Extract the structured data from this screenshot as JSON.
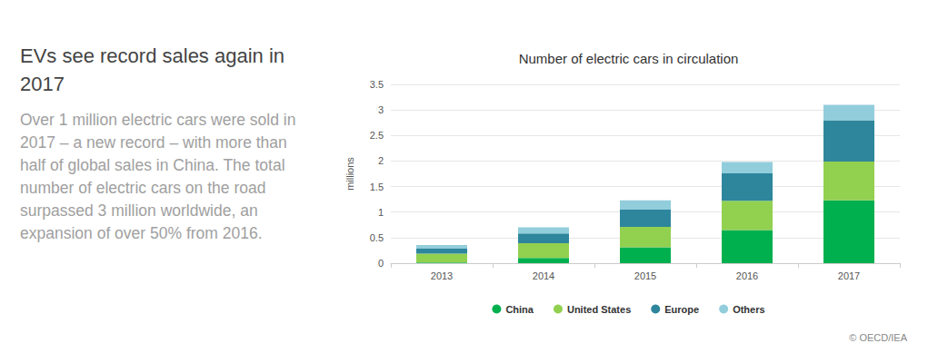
{
  "chart_data": {
    "type": "bar",
    "title": "Number of electric cars in circulation",
    "y_label": "millions",
    "categories": [
      "2013",
      "2014",
      "2015",
      "2016",
      "2017"
    ],
    "series": [
      {
        "name": "China",
        "color": "#00b04f",
        "values": [
          0.015,
          0.1,
          0.31,
          0.65,
          1.23
        ]
      },
      {
        "name": "United States",
        "color": "#92d050",
        "values": [
          0.17,
          0.29,
          0.4,
          0.57,
          0.76
        ]
      },
      {
        "name": "Europe",
        "color": "#2e869c",
        "values": [
          0.1,
          0.19,
          0.34,
          0.54,
          0.81
        ]
      },
      {
        "name": "Others",
        "color": "#92cddc",
        "values": [
          0.07,
          0.12,
          0.18,
          0.22,
          0.3
        ]
      }
    ],
    "ylim": [
      0,
      3.5
    ],
    "yticks": [
      0,
      0.5,
      1,
      1.5,
      2,
      2.5,
      3,
      3.5
    ],
    "stacked": true,
    "grid": true,
    "legend": "bottom"
  },
  "panel": {
    "heading": "EVs see record sales again in 2017",
    "text": "Over 1 million electric cars were sold in 2017 – a new record – with more than half of global sales in China. The total number of electric cars on the road surpassed 3 million worldwide, an expansion of over 50% from 2016."
  },
  "credit": "© OECD/IEA"
}
